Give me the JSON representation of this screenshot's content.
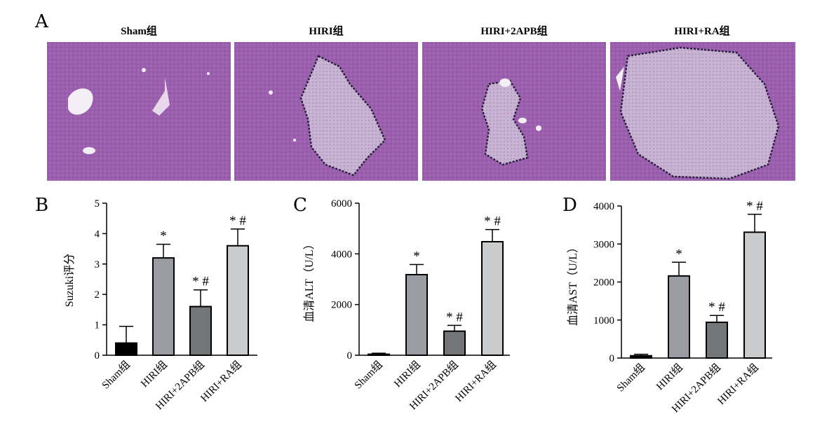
{
  "panels": {
    "a": {
      "letter": "A",
      "images": [
        {
          "title": "Sham组",
          "lesion": "none"
        },
        {
          "title": "HIRI组",
          "lesion": "large"
        },
        {
          "title": "HIRI+2APB组",
          "lesion": "small"
        },
        {
          "title": "HIRI+RA组",
          "lesion": "very-large"
        }
      ],
      "colors": {
        "tissue": "#9b5fae",
        "tissue_light": "#b07fc4",
        "lesion": "#c9b3d3",
        "lesion_border": "#2a2140",
        "vessel": "#f4eef6"
      }
    },
    "b": {
      "letter": "B"
    },
    "c": {
      "letter": "C"
    },
    "d": {
      "letter": "D"
    }
  },
  "chart_data": [
    {
      "type": "bar",
      "panel": "B",
      "ylabel": "Suzuki评分",
      "categories": [
        "Sham组",
        "HIRI组",
        "HIRI+2APB组",
        "HIRI+RA组"
      ],
      "values": [
        0.4,
        3.2,
        1.6,
        3.6
      ],
      "errors": [
        0.55,
        0.45,
        0.55,
        0.55
      ],
      "annotations": [
        "",
        "*",
        "*#",
        "*#"
      ],
      "ylim": [
        0,
        5
      ],
      "yticks": [
        0,
        1,
        2,
        3,
        4,
        5
      ],
      "bar_colors": [
        "#000000",
        "#9a9ca4",
        "#737679",
        "#c9cbcd"
      ]
    },
    {
      "type": "bar",
      "panel": "C",
      "ylabel": "血清ALT（U/L）",
      "categories": [
        "Sham组",
        "HIRI组",
        "HIRI+2APB组",
        "HIRI+RA组"
      ],
      "values": [
        40,
        3180,
        950,
        4480
      ],
      "errors": [
        40,
        400,
        230,
        480
      ],
      "annotations": [
        "",
        "*",
        "*#",
        "*#"
      ],
      "ylim": [
        0,
        6000
      ],
      "yticks": [
        0,
        2000,
        4000,
        6000
      ],
      "bar_colors": [
        "#000000",
        "#9a9ca4",
        "#737679",
        "#c9cbcd"
      ]
    },
    {
      "type": "bar",
      "panel": "D",
      "ylabel": "血清AST（U/L）",
      "categories": [
        "Sham组",
        "HIRI组",
        "HIRI+2APB组",
        "HIRI+RA组"
      ],
      "values": [
        60,
        2160,
        940,
        3310
      ],
      "errors": [
        40,
        360,
        180,
        470
      ],
      "annotations": [
        "",
        "*",
        "*#",
        "*#"
      ],
      "ylim": [
        0,
        4000
      ],
      "yticks": [
        0,
        1000,
        2000,
        3000,
        4000
      ],
      "bar_colors": [
        "#000000",
        "#9a9ca4",
        "#737679",
        "#c9cbcd"
      ]
    }
  ]
}
